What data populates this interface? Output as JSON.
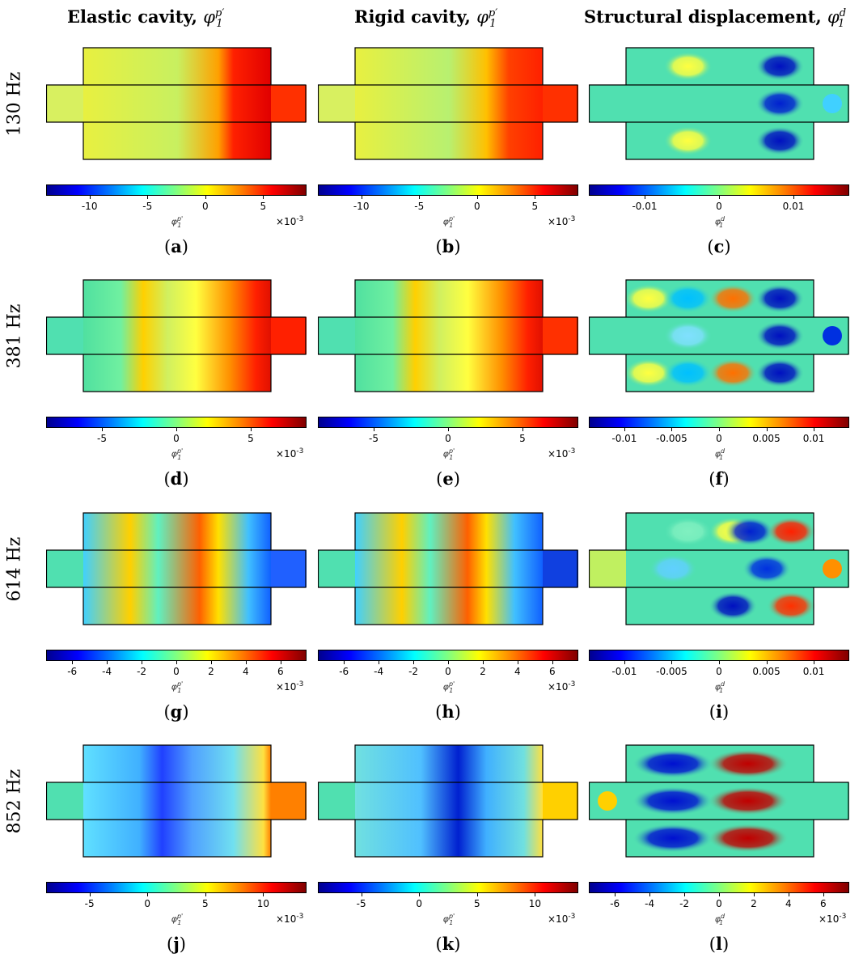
{
  "columns": [
    {
      "title": "Elastic cavity,",
      "sym": "φ",
      "sup": "p′",
      "sub": "1"
    },
    {
      "title": "Rigid cavity,",
      "sym": "φ",
      "sup": "p′",
      "sub": "1"
    },
    {
      "title": "Structural displacement,",
      "sym": "φ",
      "sup": "d",
      "sub": "1"
    }
  ],
  "rows": [
    {
      "label": "130 Hz",
      "panels": [
        {
          "letter": "a",
          "cb_label": "φ",
          "cb_sup": "p'",
          "cb_sub": "1",
          "exponent_base": "×10",
          "exponent_pow": "-3",
          "ticks": [
            "-10",
            "-5",
            "0",
            "5"
          ]
        },
        {
          "letter": "b",
          "cb_label": "φ",
          "cb_sup": "p'",
          "cb_sub": "1",
          "exponent_base": "×10",
          "exponent_pow": "-3",
          "ticks": [
            "-10",
            "-5",
            "0",
            "5"
          ]
        },
        {
          "letter": "c",
          "cb_label": "φ",
          "cb_sup": "d",
          "cb_sub": "1",
          "exponent_base": "",
          "exponent_pow": "",
          "ticks": [
            "-0.01",
            "0",
            "0.01"
          ]
        }
      ]
    },
    {
      "label": "381 Hz",
      "panels": [
        {
          "letter": "d",
          "cb_label": "φ",
          "cb_sup": "p'",
          "cb_sub": "1",
          "exponent_base": "×10",
          "exponent_pow": "-3",
          "ticks": [
            "-5",
            "0",
            "5"
          ]
        },
        {
          "letter": "e",
          "cb_label": "φ",
          "cb_sup": "p'",
          "cb_sub": "1",
          "exponent_base": "×10",
          "exponent_pow": "-3",
          "ticks": [
            "-5",
            "0",
            "5"
          ]
        },
        {
          "letter": "f",
          "cb_label": "φ",
          "cb_sup": "d",
          "cb_sub": "1",
          "exponent_base": "",
          "exponent_pow": "",
          "ticks": [
            "-0.01",
            "-0.005",
            "0",
            "0.005",
            "0.01"
          ]
        }
      ]
    },
    {
      "label": "614 Hz",
      "panels": [
        {
          "letter": "g",
          "cb_label": "φ",
          "cb_sup": "p'",
          "cb_sub": "1",
          "exponent_base": "×10",
          "exponent_pow": "-3",
          "ticks": [
            "-6",
            "-4",
            "-2",
            "0",
            "2",
            "4",
            "6"
          ]
        },
        {
          "letter": "h",
          "cb_label": "φ",
          "cb_sup": "p'",
          "cb_sub": "1",
          "exponent_base": "×10",
          "exponent_pow": "-3",
          "ticks": [
            "-6",
            "-4",
            "-2",
            "0",
            "2",
            "4",
            "6"
          ]
        },
        {
          "letter": "i",
          "cb_label": "φ",
          "cb_sup": "d",
          "cb_sub": "1",
          "exponent_base": "",
          "exponent_pow": "",
          "ticks": [
            "-0.01",
            "-0.005",
            "0",
            "0.005",
            "0.01"
          ]
        }
      ]
    },
    {
      "label": "852 Hz",
      "panels": [
        {
          "letter": "j",
          "cb_label": "φ",
          "cb_sup": "p'",
          "cb_sub": "1",
          "exponent_base": "×10",
          "exponent_pow": "-3",
          "ticks": [
            "-5",
            "0",
            "5",
            "10"
          ]
        },
        {
          "letter": "k",
          "cb_label": "φ",
          "cb_sup": "p'",
          "cb_sub": "1",
          "exponent_base": "×10",
          "exponent_pow": "-3",
          "ticks": [
            "-5",
            "0",
            "5",
            "10"
          ]
        },
        {
          "letter": "l",
          "cb_label": "φ",
          "cb_sup": "d",
          "cb_sub": "1",
          "exponent_base": "×10",
          "exponent_pow": "-3",
          "ticks": [
            "-6",
            "-4",
            "-2",
            "0",
            "2",
            "4",
            "6"
          ]
        }
      ]
    }
  ]
}
